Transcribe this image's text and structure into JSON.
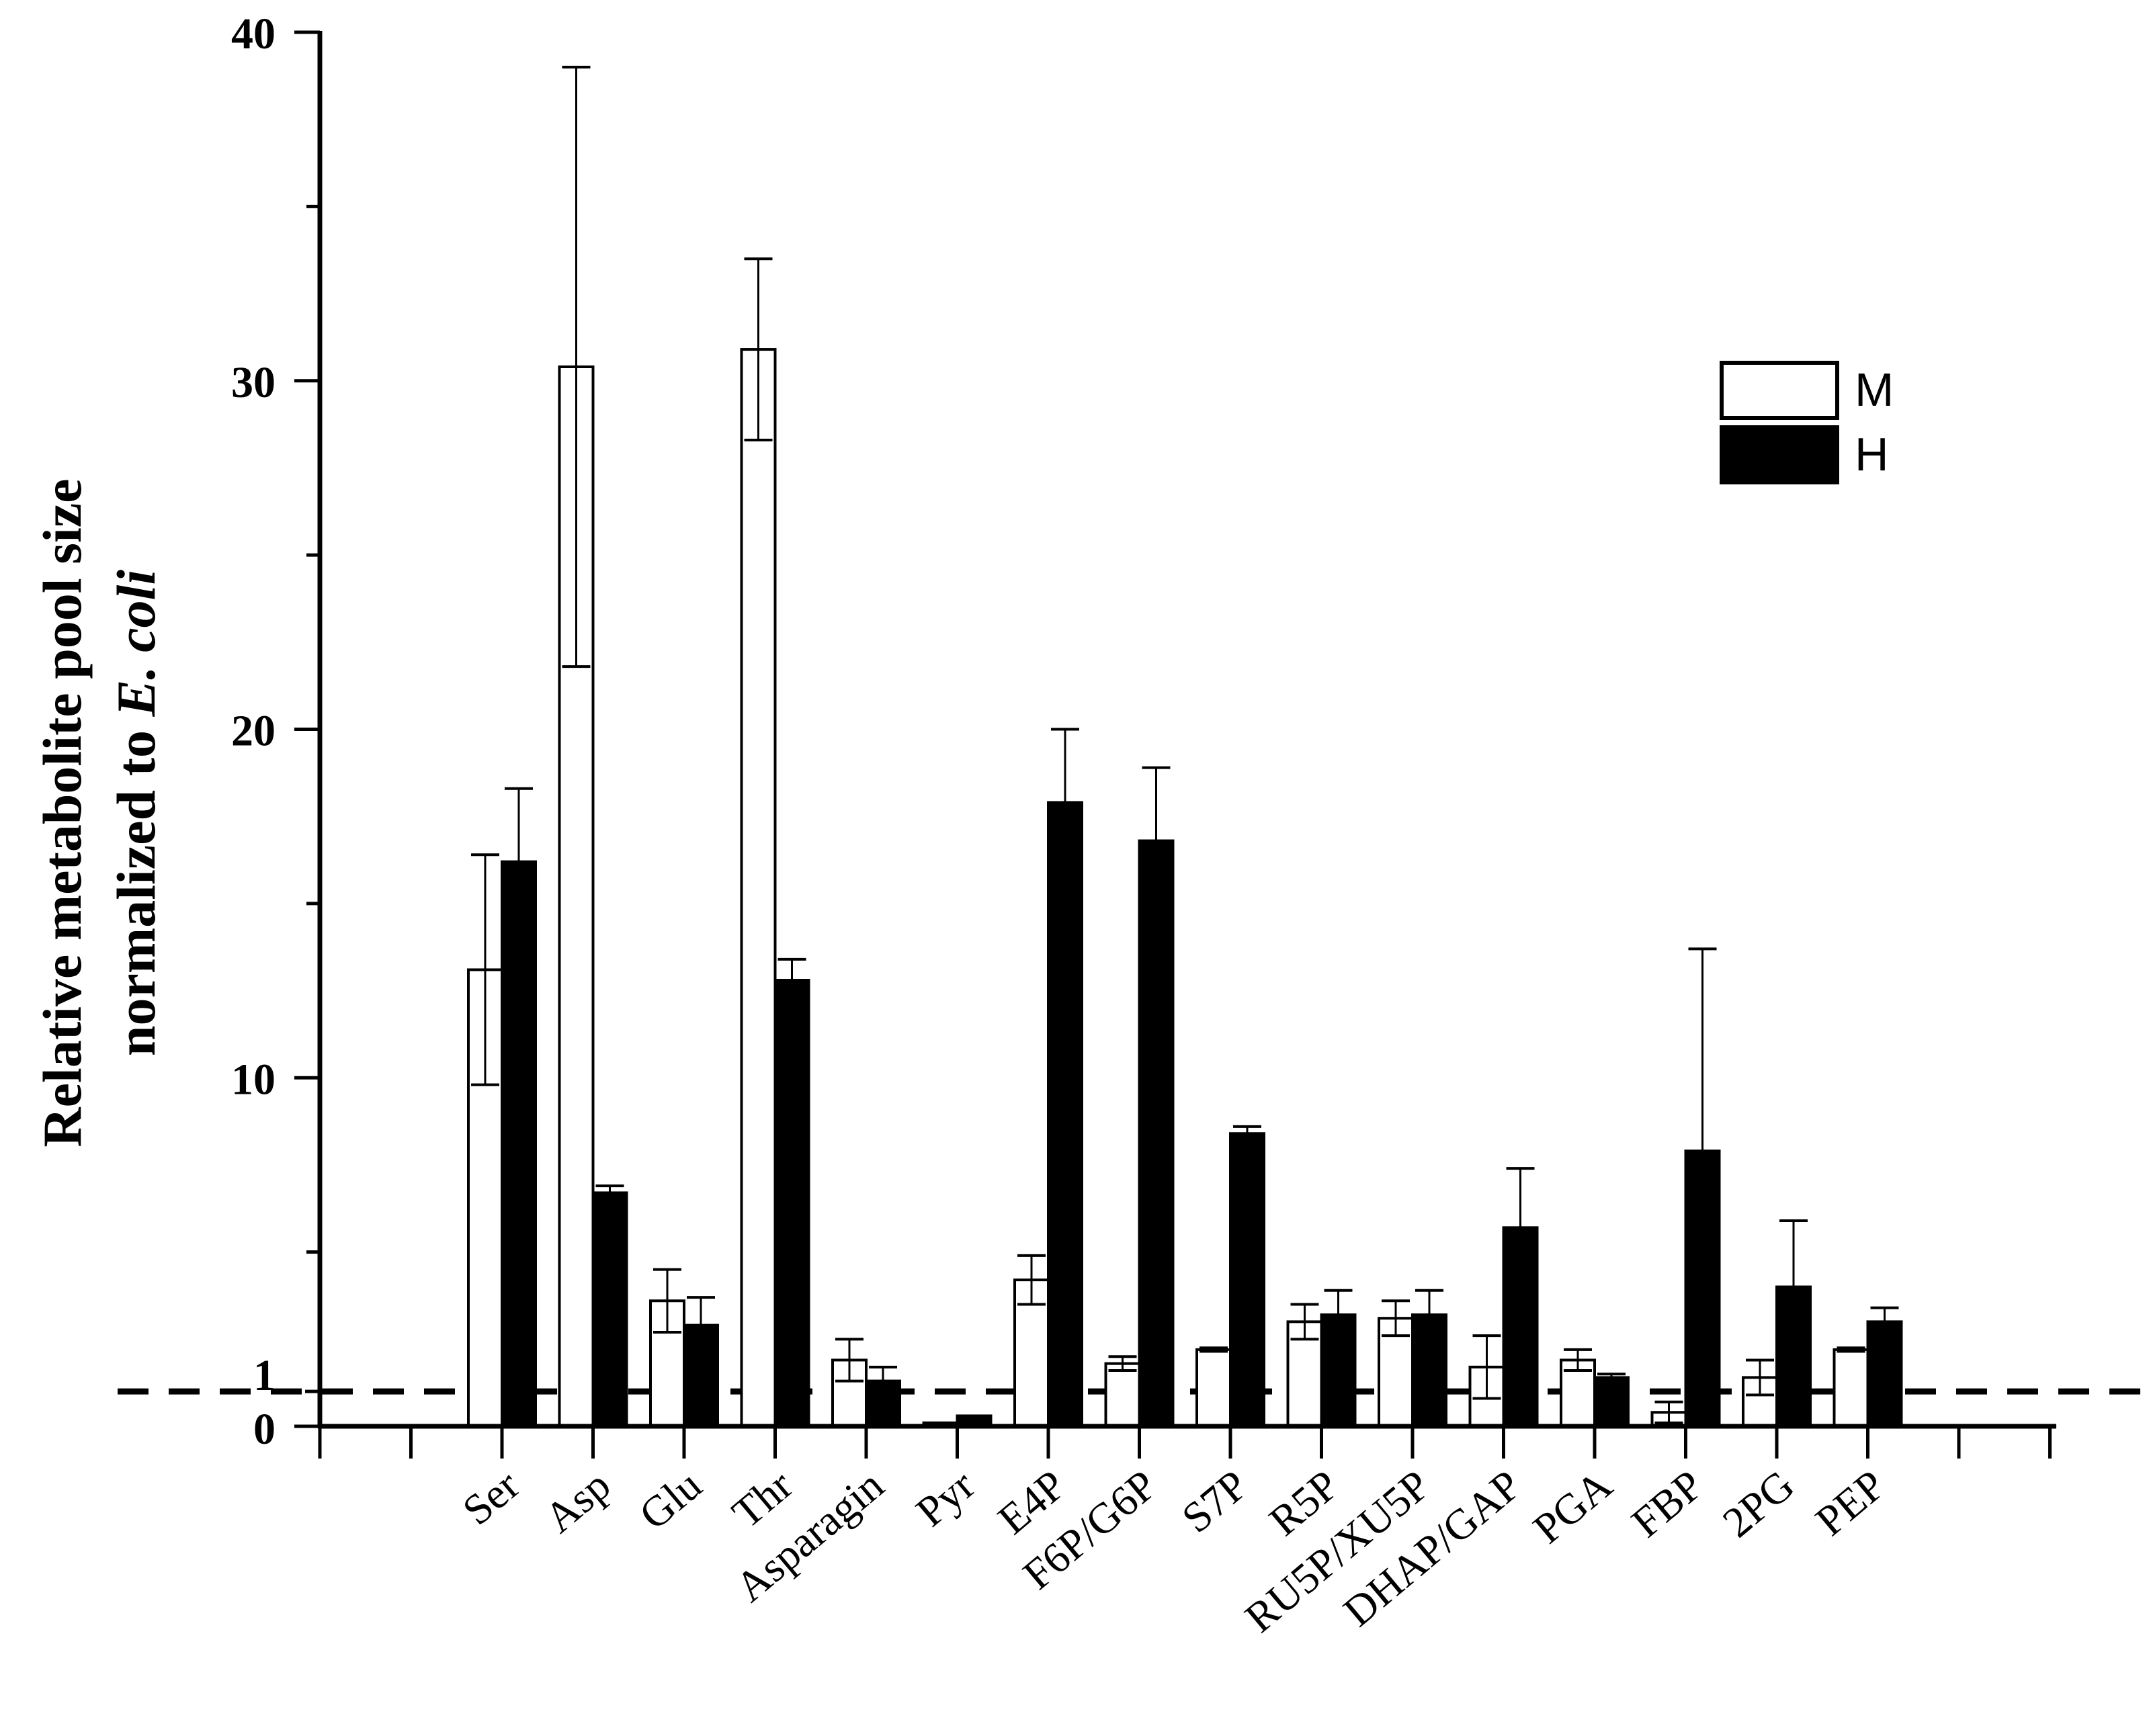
{
  "chart_data": {
    "type": "bar",
    "title": "",
    "xlabel": "",
    "ylabel": "Relative metabolite pool size normalized to E. coli",
    "ylabel_line1": "Relative metabolite pool size",
    "ylabel_line2_prefix": "normalized to ",
    "ylabel_line2_italic": "E. coli",
    "ylim": [
      0,
      40
    ],
    "yticks": [
      0,
      1,
      10,
      20,
      30,
      40
    ],
    "ytick_labels": [
      "0",
      "1",
      "10",
      "20",
      "30",
      "40"
    ],
    "reference_line": 1,
    "legend_position": "top-right",
    "categories": [
      "Ser",
      "Asp",
      "Glu",
      "Thr",
      "Asparagin",
      "Pyr",
      "E4P",
      "F6P/G6P",
      "S7P",
      "R5P",
      "RU5P/XU5P",
      "DHAP/GAP",
      "PGA",
      "FBP",
      "2PG",
      "PEP"
    ],
    "series": [
      {
        "name": "M",
        "fill": "#ffffff",
        "values": [
          13.1,
          30.4,
          3.6,
          30.9,
          1.9,
          0.1,
          4.2,
          1.8,
          2.2,
          3.0,
          3.1,
          1.7,
          1.9,
          0.4,
          1.4,
          2.2
        ],
        "errors": [
          3.3,
          8.6,
          0.9,
          2.6,
          0.6,
          0.0,
          0.7,
          0.2,
          0.05,
          0.5,
          0.5,
          0.9,
          0.3,
          0.3,
          0.5,
          0.05
        ]
      },
      {
        "name": "H",
        "fill": "#000000",
        "values": [
          16.2,
          6.7,
          2.9,
          12.8,
          1.3,
          0.3,
          17.9,
          16.8,
          8.4,
          3.2,
          3.2,
          5.7,
          1.4,
          7.9,
          4.0,
          3.0
        ],
        "errors": [
          2.1,
          0.2,
          0.8,
          0.6,
          0.4,
          0.0,
          2.1,
          2.1,
          0.2,
          0.7,
          0.7,
          1.7,
          0.1,
          5.8,
          1.9,
          0.4
        ]
      }
    ],
    "colors": {
      "axis": "#000000",
      "background": "#ffffff"
    }
  }
}
